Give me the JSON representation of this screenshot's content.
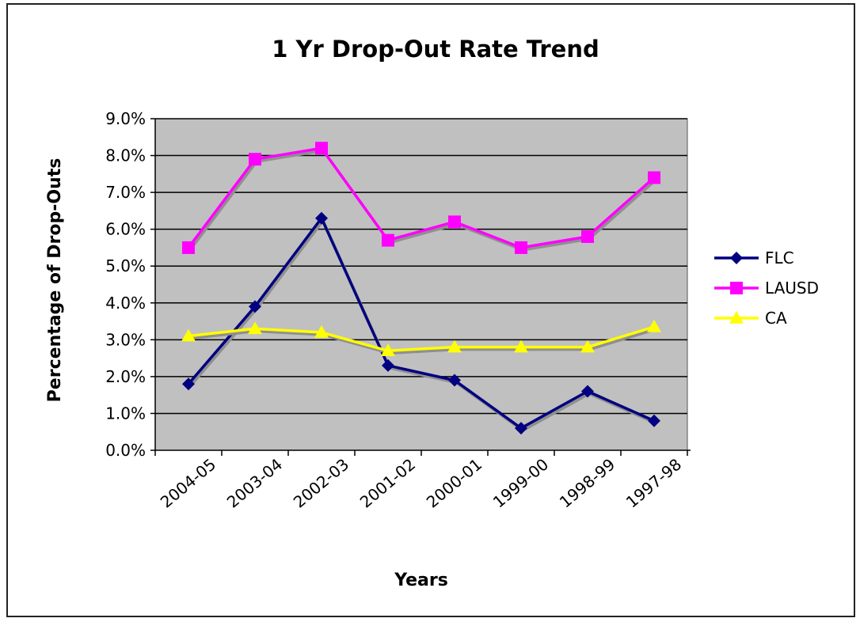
{
  "chart_data": {
    "type": "line",
    "title": "1 Yr Drop-Out Rate Trend",
    "xlabel": "Years",
    "ylabel": "Percentage of Drop-Outs",
    "categories": [
      "2004-05",
      "2003-04",
      "2002-03",
      "2001-02",
      "2000-01",
      "1999-00",
      "1998-99",
      "1997-98"
    ],
    "ylim": [
      0,
      9
    ],
    "yticks": [
      "0.0%",
      "1.0%",
      "2.0%",
      "3.0%",
      "4.0%",
      "5.0%",
      "6.0%",
      "7.0%",
      "8.0%",
      "9.0%"
    ],
    "grid": true,
    "plot_background": "#c0c0c0",
    "legend_position": "right",
    "series": [
      {
        "name": "FLC",
        "color": "#000080",
        "marker": "diamond",
        "values": [
          1.8,
          3.9,
          6.3,
          2.3,
          1.9,
          0.6,
          1.6,
          0.8
        ]
      },
      {
        "name": "LAUSD",
        "color": "#ff00ff",
        "marker": "square",
        "values": [
          5.5,
          7.9,
          8.2,
          5.7,
          6.2,
          5.5,
          5.8,
          7.4
        ]
      },
      {
        "name": "CA",
        "color": "#ffff00",
        "marker": "triangle",
        "values": [
          3.1,
          3.3,
          3.2,
          2.7,
          2.8,
          2.8,
          2.8,
          3.35
        ]
      }
    ]
  }
}
